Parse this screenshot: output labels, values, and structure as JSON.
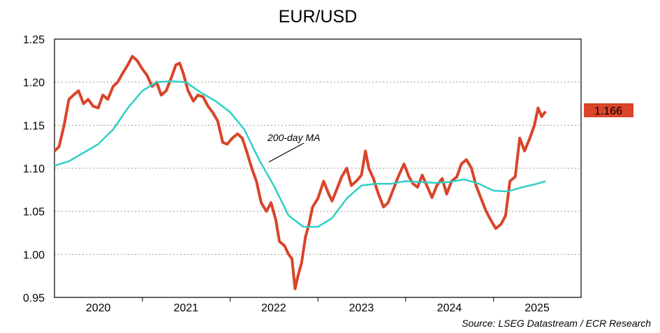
{
  "chart_data": {
    "type": "line",
    "title": "EUR/USD",
    "ylim": [
      0.95,
      1.25
    ],
    "y_ticks": [
      "1.25",
      "1.20",
      "1.15",
      "1.10",
      "1.05",
      "1.00",
      "0.95"
    ],
    "y_tick_values": [
      1.25,
      1.2,
      1.15,
      1.1,
      1.05,
      1.0,
      0.95
    ],
    "x_range": [
      "2020-01-01",
      "2025-12-31"
    ],
    "x_year_labels": [
      "2020",
      "2021",
      "2022",
      "2023",
      "2024",
      "2025"
    ],
    "grid": "horizontal dotted",
    "series": [
      {
        "color": "#d9442a",
        "points": [
          [
            "2020-01-01",
            1.12
          ],
          [
            "2020-01-20",
            1.125
          ],
          [
            "2020-02-10",
            1.15
          ],
          [
            "2020-03-01",
            1.18
          ],
          [
            "2020-03-20",
            1.185
          ],
          [
            "2020-04-10",
            1.19
          ],
          [
            "2020-05-01",
            1.175
          ],
          [
            "2020-05-20",
            1.18
          ],
          [
            "2020-06-10",
            1.172
          ],
          [
            "2020-07-01",
            1.17
          ],
          [
            "2020-07-20",
            1.185
          ],
          [
            "2020-08-10",
            1.18
          ],
          [
            "2020-09-01",
            1.195
          ],
          [
            "2020-09-20",
            1.2
          ],
          [
            "2020-10-10",
            1.21
          ],
          [
            "2020-11-01",
            1.22
          ],
          [
            "2020-11-20",
            1.23
          ],
          [
            "2020-12-10",
            1.225
          ],
          [
            "2021-01-01",
            1.215
          ],
          [
            "2021-01-20",
            1.208
          ],
          [
            "2021-02-10",
            1.195
          ],
          [
            "2021-03-01",
            1.2
          ],
          [
            "2021-03-20",
            1.185
          ],
          [
            "2021-04-10",
            1.19
          ],
          [
            "2021-05-01",
            1.205
          ],
          [
            "2021-05-20",
            1.22
          ],
          [
            "2021-06-05",
            1.222
          ],
          [
            "2021-06-20",
            1.21
          ],
          [
            "2021-07-10",
            1.19
          ],
          [
            "2021-08-01",
            1.178
          ],
          [
            "2021-08-20",
            1.185
          ],
          [
            "2021-09-10",
            1.183
          ],
          [
            "2021-10-01",
            1.172
          ],
          [
            "2021-10-20",
            1.165
          ],
          [
            "2021-11-10",
            1.155
          ],
          [
            "2021-12-01",
            1.13
          ],
          [
            "2021-12-20",
            1.128
          ],
          [
            "2022-01-10",
            1.135
          ],
          [
            "2022-02-01",
            1.14
          ],
          [
            "2022-02-20",
            1.135
          ],
          [
            "2022-03-10",
            1.12
          ],
          [
            "2022-04-01",
            1.1
          ],
          [
            "2022-04-20",
            1.085
          ],
          [
            "2022-05-10",
            1.06
          ],
          [
            "2022-06-01",
            1.05
          ],
          [
            "2022-06-20",
            1.06
          ],
          [
            "2022-07-10",
            1.04
          ],
          [
            "2022-07-25",
            1.015
          ],
          [
            "2022-08-15",
            1.01
          ],
          [
            "2022-09-01",
            1.0
          ],
          [
            "2022-09-15",
            0.995
          ],
          [
            "2022-09-28",
            0.96
          ],
          [
            "2022-10-10",
            0.975
          ],
          [
            "2022-10-25",
            0.99
          ],
          [
            "2022-11-10",
            1.02
          ],
          [
            "2022-11-25",
            1.035
          ],
          [
            "2022-12-10",
            1.055
          ],
          [
            "2023-01-01",
            1.065
          ],
          [
            "2023-01-25",
            1.085
          ],
          [
            "2023-02-15",
            1.07
          ],
          [
            "2023-03-01",
            1.062
          ],
          [
            "2023-03-20",
            1.075
          ],
          [
            "2023-04-10",
            1.09
          ],
          [
            "2023-05-01",
            1.1
          ],
          [
            "2023-05-20",
            1.08
          ],
          [
            "2023-06-10",
            1.085
          ],
          [
            "2023-07-01",
            1.092
          ],
          [
            "2023-07-18",
            1.12
          ],
          [
            "2023-08-01",
            1.1
          ],
          [
            "2023-08-20",
            1.088
          ],
          [
            "2023-09-10",
            1.07
          ],
          [
            "2023-10-01",
            1.055
          ],
          [
            "2023-10-20",
            1.06
          ],
          [
            "2023-11-10",
            1.075
          ],
          [
            "2023-12-01",
            1.09
          ],
          [
            "2023-12-25",
            1.105
          ],
          [
            "2024-01-15",
            1.09
          ],
          [
            "2024-02-01",
            1.082
          ],
          [
            "2024-02-20",
            1.078
          ],
          [
            "2024-03-10",
            1.092
          ],
          [
            "2024-04-01",
            1.078
          ],
          [
            "2024-04-20",
            1.066
          ],
          [
            "2024-05-10",
            1.08
          ],
          [
            "2024-06-01",
            1.088
          ],
          [
            "2024-06-20",
            1.07
          ],
          [
            "2024-07-10",
            1.085
          ],
          [
            "2024-08-01",
            1.09
          ],
          [
            "2024-08-20",
            1.105
          ],
          [
            "2024-09-10",
            1.11
          ],
          [
            "2024-10-01",
            1.1
          ],
          [
            "2024-10-20",
            1.08
          ],
          [
            "2024-11-10",
            1.065
          ],
          [
            "2024-12-01",
            1.05
          ],
          [
            "2024-12-20",
            1.04
          ],
          [
            "2025-01-10",
            1.03
          ],
          [
            "2025-02-01",
            1.035
          ],
          [
            "2025-02-20",
            1.045
          ],
          [
            "2025-03-10",
            1.085
          ],
          [
            "2025-04-01",
            1.09
          ],
          [
            "2025-04-20",
            1.135
          ],
          [
            "2025-05-10",
            1.12
          ],
          [
            "2025-06-01",
            1.135
          ],
          [
            "2025-06-20",
            1.15
          ],
          [
            "2025-07-05",
            1.17
          ],
          [
            "2025-07-20",
            1.16
          ],
          [
            "2025-08-05",
            1.166
          ]
        ]
      },
      {
        "name": "200-day MA",
        "color": "#2fcfc4",
        "points": [
          [
            "2020-01-01",
            1.103
          ],
          [
            "2020-03-01",
            1.108
          ],
          [
            "2020-05-01",
            1.118
          ],
          [
            "2020-07-01",
            1.128
          ],
          [
            "2020-09-01",
            1.145
          ],
          [
            "2020-11-01",
            1.17
          ],
          [
            "2021-01-01",
            1.19
          ],
          [
            "2021-03-01",
            1.2
          ],
          [
            "2021-05-01",
            1.201
          ],
          [
            "2021-07-01",
            1.2
          ],
          [
            "2021-09-01",
            1.188
          ],
          [
            "2021-11-01",
            1.178
          ],
          [
            "2022-01-01",
            1.165
          ],
          [
            "2022-03-01",
            1.145
          ],
          [
            "2022-05-01",
            1.11
          ],
          [
            "2022-07-01",
            1.08
          ],
          [
            "2022-09-01",
            1.045
          ],
          [
            "2022-11-01",
            1.032
          ],
          [
            "2023-01-01",
            1.032
          ],
          [
            "2023-03-01",
            1.042
          ],
          [
            "2023-05-01",
            1.065
          ],
          [
            "2023-07-01",
            1.08
          ],
          [
            "2023-09-01",
            1.082
          ],
          [
            "2023-11-01",
            1.082
          ],
          [
            "2024-01-01",
            1.085
          ],
          [
            "2024-03-01",
            1.084
          ],
          [
            "2024-05-01",
            1.083
          ],
          [
            "2024-07-01",
            1.084
          ],
          [
            "2024-09-01",
            1.087
          ],
          [
            "2024-11-01",
            1.082
          ],
          [
            "2025-01-01",
            1.074
          ],
          [
            "2025-03-01",
            1.073
          ],
          [
            "2025-05-01",
            1.078
          ],
          [
            "2025-07-01",
            1.082
          ],
          [
            "2025-08-05",
            1.085
          ]
        ]
      }
    ],
    "annotations": [
      {
        "text": "200-day MA",
        "series": "200-day MA"
      }
    ],
    "last_value": {
      "text": "1.166",
      "value": 1.166,
      "bg_color": "#d9442a"
    },
    "source": "Source: LSEG Datastream / ECR Research"
  }
}
